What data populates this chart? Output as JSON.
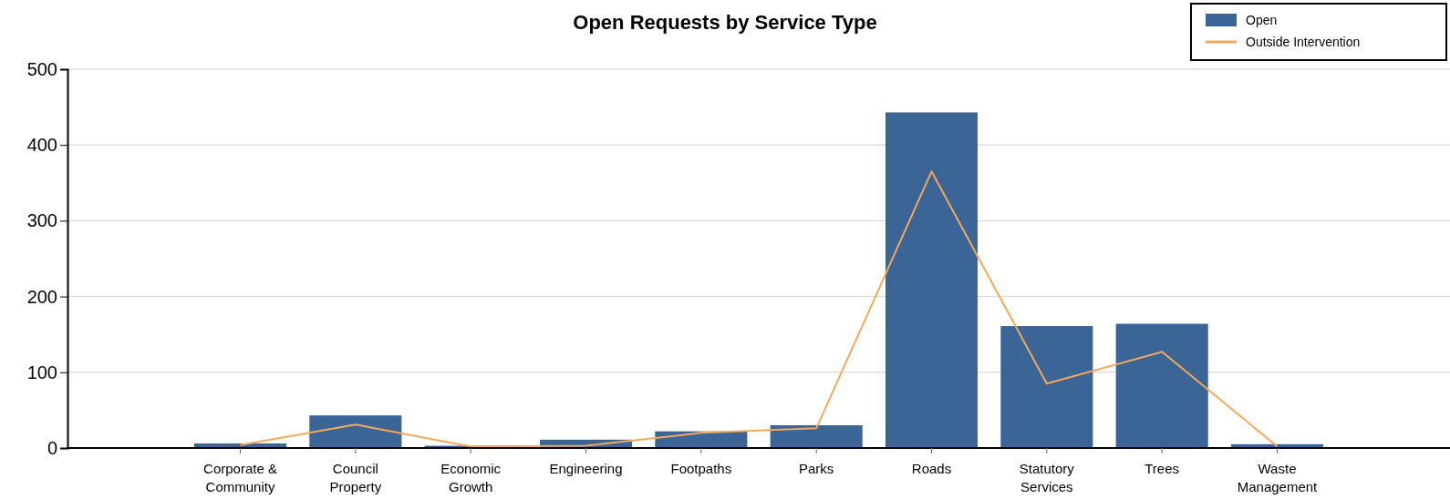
{
  "chart_data": {
    "type": "bar",
    "title": "Open Requests by Service Type",
    "categories": [
      "Corporate & Community",
      "Council Property",
      "Economic Growth",
      "Engineering",
      "Footpaths",
      "Parks",
      "Roads",
      "Statutory Services",
      "Trees",
      "Waste Management"
    ],
    "series": [
      {
        "name": "Open",
        "color": "#3a6596",
        "values": [
          6,
          43,
          3,
          11,
          22,
          30,
          443,
          161,
          164,
          5
        ]
      },
      {
        "name": "Outside Intervention",
        "type": "line",
        "color": "#f4a95a",
        "values": [
          4,
          31,
          2,
          3,
          20,
          26,
          365,
          85,
          127,
          2
        ]
      }
    ],
    "ylim": [
      0,
      500
    ],
    "yticks": [
      0,
      100,
      200,
      300,
      400,
      500
    ],
    "grid": "y",
    "legend": "top right",
    "marker": "none",
    "line_style": "solid"
  }
}
